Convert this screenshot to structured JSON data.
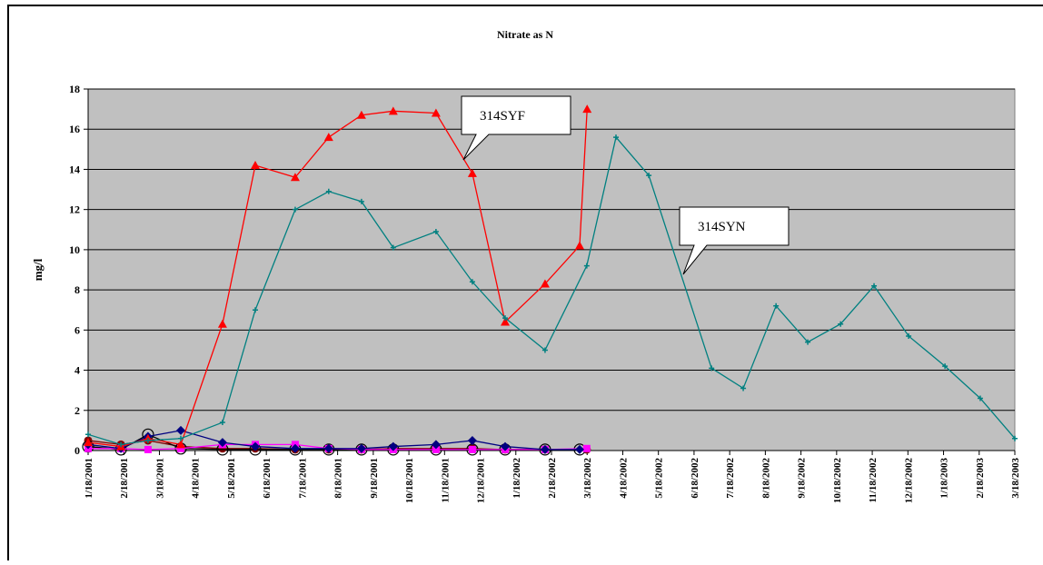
{
  "chart_data": {
    "type": "line",
    "title": "Nitrate as N",
    "ylabel": "mg/l",
    "ylim": [
      0,
      18
    ],
    "yticks": [
      0,
      2,
      4,
      6,
      8,
      10,
      12,
      14,
      16,
      18
    ],
    "grid": true,
    "xlim": [
      0,
      26
    ],
    "xticks": [
      {
        "value": 0,
        "label": "1/18/2001"
      },
      {
        "value": 1,
        "label": "2/18/2001"
      },
      {
        "value": 2,
        "label": "3/18/2001"
      },
      {
        "value": 3,
        "label": "4/18/2001"
      },
      {
        "value": 4,
        "label": "5/18/2001"
      },
      {
        "value": 5,
        "label": "6/18/2001"
      },
      {
        "value": 6,
        "label": "7/18/2001"
      },
      {
        "value": 7,
        "label": "8/18/2001"
      },
      {
        "value": 8,
        "label": "9/18/2001"
      },
      {
        "value": 9,
        "label": "10/18/2001"
      },
      {
        "value": 10,
        "label": "11/18/2001"
      },
      {
        "value": 11,
        "label": "12/18/2001"
      },
      {
        "value": 12,
        "label": "1/18/2002"
      },
      {
        "value": 13,
        "label": "2/18/2002"
      },
      {
        "value": 14,
        "label": "3/18/2002"
      },
      {
        "value": 15,
        "label": "4/18/2002"
      },
      {
        "value": 16,
        "label": "5/18/2002"
      },
      {
        "value": 17,
        "label": "6/18/2002"
      },
      {
        "value": 18,
        "label": "7/18/2002"
      },
      {
        "value": 19,
        "label": "8/18/2002"
      },
      {
        "value": 20,
        "label": "9/18/2002"
      },
      {
        "value": 21,
        "label": "10/18/2002"
      },
      {
        "value": 22,
        "label": "11/18/2002"
      },
      {
        "value": 23,
        "label": "12/18/2002"
      },
      {
        "value": 24,
        "label": "1/18/2003"
      },
      {
        "value": 25,
        "label": "2/18/2003"
      },
      {
        "value": 26,
        "label": "3/18/2003"
      }
    ],
    "series": [
      {
        "color": "#008080",
        "marker": "plus",
        "name": "314SYN",
        "x": [
          0,
          0.92,
          1.68,
          2.6,
          3.77,
          4.69,
          5.81,
          6.75,
          7.67,
          8.56,
          9.76,
          10.78,
          11.7,
          12.82,
          13.99,
          14.81,
          15.73,
          17.49,
          18.38,
          19.3,
          20.19,
          21.11,
          22.05,
          23.02,
          24.04,
          25.03,
          26
        ],
        "values": [
          0.8,
          0.3,
          0.5,
          0.6,
          1.4,
          7.0,
          12.0,
          12.9,
          12.4,
          10.1,
          10.9,
          8.4,
          6.6,
          5.0,
          9.2,
          15.6,
          13.7,
          4.1,
          3.1,
          7.2,
          5.4,
          6.3,
          8.2,
          5.7,
          4.2,
          2.6,
          0.6
        ]
      },
      {
        "color": "#ff0000",
        "marker": "triangle",
        "name": "314SYF",
        "x": [
          0,
          0.92,
          1.68,
          2.6,
          3.77,
          4.69,
          5.81,
          6.75,
          7.67,
          8.56,
          9.76,
          10.78,
          11.7,
          12.82,
          13.79,
          14.0
        ],
        "values": [
          0.4,
          0.2,
          0.6,
          0.3,
          6.3,
          14.2,
          13.6,
          15.6,
          16.7,
          16.9,
          16.8,
          13.8,
          6.4,
          8.3,
          10.2,
          17.0
        ]
      },
      {
        "color": "#000080",
        "marker": "diamond",
        "x": [
          0,
          0.92,
          1.68,
          2.6,
          3.77,
          4.69,
          5.81,
          6.75,
          7.67,
          8.56,
          9.76,
          10.78,
          11.7,
          12.82,
          13.79
        ],
        "values": [
          0.3,
          0.1,
          0.7,
          1.0,
          0.4,
          0.2,
          0.1,
          0.1,
          0.1,
          0.2,
          0.3,
          0.5,
          0.2,
          0.05,
          0.05
        ]
      },
      {
        "color": "#ff00ff",
        "marker": "square",
        "x": [
          0,
          0.92,
          1.68,
          2.6,
          3.77,
          4.69,
          5.81,
          6.75,
          7.67,
          8.56,
          9.76,
          10.78,
          11.7,
          12.82,
          13.99
        ],
        "values": [
          0.1,
          0.1,
          0.05,
          0.1,
          0.3,
          0.3,
          0.3,
          0.1,
          0.05,
          0.05,
          0.05,
          0.05,
          0.05,
          0.05,
          0.1
        ]
      },
      {
        "color": "#000000",
        "marker": "circle",
        "x": [
          0,
          0.92,
          1.68,
          2.6,
          3.77,
          4.69,
          5.81,
          6.75,
          7.67,
          8.56,
          9.76,
          10.78,
          11.7,
          12.82,
          13.79
        ],
        "values": [
          0.2,
          0.05,
          0.8,
          0.1,
          0.05,
          0.05,
          0.05,
          0.05,
          0.05,
          0.05,
          0.05,
          0.05,
          0.05,
          0.05,
          0.05
        ]
      },
      {
        "color": "#800000",
        "marker": "dot",
        "x": [
          0,
          0.92,
          1.68,
          2.6,
          3.77,
          4.69,
          5.81,
          6.75,
          7.67,
          8.56,
          9.76,
          10.78,
          11.7,
          12.82,
          13.99
        ],
        "values": [
          0.5,
          0.3,
          0.5,
          0.2,
          0.1,
          0.1,
          0.05,
          0.05,
          0.05,
          0.1,
          0.1,
          0.1,
          0.05,
          0.05,
          0.05
        ]
      }
    ]
  }
}
